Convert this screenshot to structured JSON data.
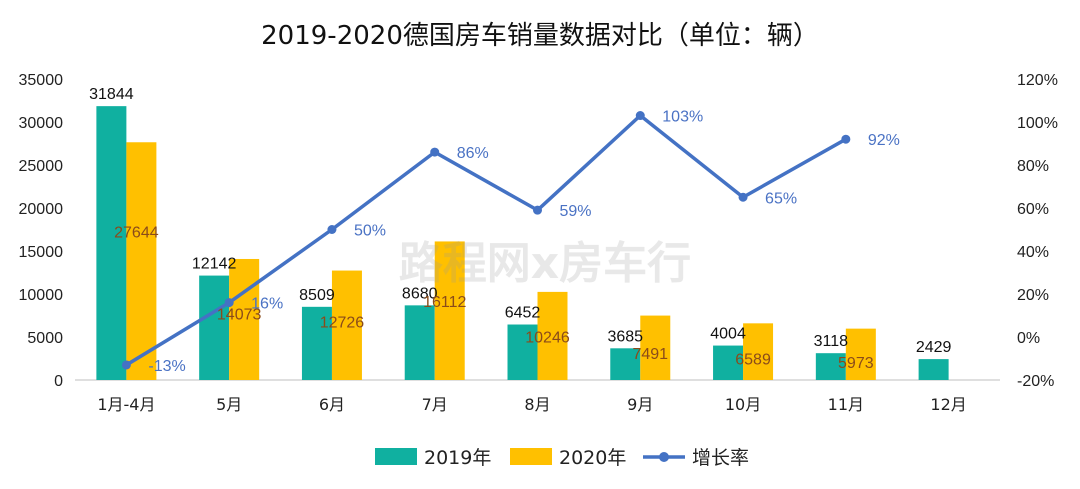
{
  "chart_data": {
    "type": "bar",
    "title": "2019-2020德国房车销量数据对比（单位：辆）",
    "categories": [
      "1月-4月",
      "5月",
      "6月",
      "7月",
      "8月",
      "9月",
      "10月",
      "11月",
      "12月"
    ],
    "series": [
      {
        "name": "2019年",
        "type": "bar",
        "axis": "left",
        "color": "#10b0a0",
        "values": [
          31844,
          12142,
          8509,
          8680,
          6452,
          3685,
          4004,
          3118,
          2429
        ]
      },
      {
        "name": "2020年",
        "type": "bar",
        "axis": "left",
        "color": "#ffc000",
        "values": [
          27644,
          14073,
          12726,
          16112,
          10246,
          7491,
          6589,
          5973,
          null
        ]
      },
      {
        "name": "增长率",
        "type": "line",
        "axis": "right",
        "color": "#4472c4",
        "values": [
          -13,
          16,
          50,
          86,
          59,
          103,
          65,
          92,
          null
        ],
        "labels": [
          "-13%",
          "16%",
          "50%",
          "86%",
          "59%",
          "103%",
          "65%",
          "92%",
          ""
        ]
      }
    ],
    "y_left": {
      "min": 0,
      "max": 35000,
      "step": 5000,
      "ticks": [
        "0",
        "5000",
        "10000",
        "15000",
        "20000",
        "25000",
        "30000",
        "35000"
      ]
    },
    "y_right": {
      "min": -20,
      "max": 120,
      "step": 20,
      "ticks": [
        "-20%",
        "0%",
        "20%",
        "40%",
        "60%",
        "80%",
        "100%",
        "120%"
      ]
    },
    "legend": {
      "position": "bottom"
    },
    "watermark": "路程网x房车行"
  }
}
